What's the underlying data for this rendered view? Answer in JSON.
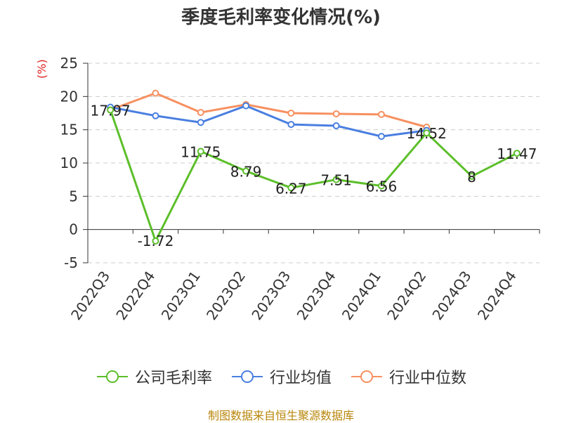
{
  "title": "季度毛利率变化情况(%)",
  "unit_label": "(%)",
  "source": "制图数据来自恒生聚源数据库",
  "colors": {
    "company": "#5cbf2a",
    "industry_avg": "#4a7fe0",
    "industry_median": "#f79060",
    "axis": "#333333",
    "grid": "#cccccc"
  },
  "chart_data": {
    "type": "line",
    "title": "季度毛利率变化情况(%)",
    "ylabel": "(%)",
    "ylim": [
      -5,
      25
    ],
    "yticks": [
      -5,
      0,
      5,
      10,
      15,
      20,
      25
    ],
    "grid": true,
    "legend_position": "bottom",
    "categories": [
      "2022Q3",
      "2022Q4",
      "2023Q1",
      "2023Q2",
      "2023Q3",
      "2023Q4",
      "2024Q1",
      "2024Q2",
      "2024Q3",
      "2024Q4"
    ],
    "series": [
      {
        "name": "公司毛利率",
        "values": [
          17.97,
          -1.72,
          11.75,
          8.79,
          6.27,
          7.51,
          6.56,
          14.52,
          8,
          11.47
        ],
        "labels": [
          "17.97",
          "-1.72",
          "11.75",
          "8.79",
          "6.27",
          "7.51",
          "6.56",
          "14.52",
          "8",
          "11.47"
        ],
        "show_labels": true
      },
      {
        "name": "行业均值",
        "values": [
          18.4,
          17.1,
          16.1,
          18.6,
          15.8,
          15.6,
          14.0,
          14.9,
          null,
          null
        ],
        "show_labels": false
      },
      {
        "name": "行业中位数",
        "values": [
          18.0,
          20.5,
          17.6,
          18.8,
          17.5,
          17.4,
          17.3,
          15.4,
          null,
          null
        ],
        "show_labels": false
      }
    ]
  }
}
